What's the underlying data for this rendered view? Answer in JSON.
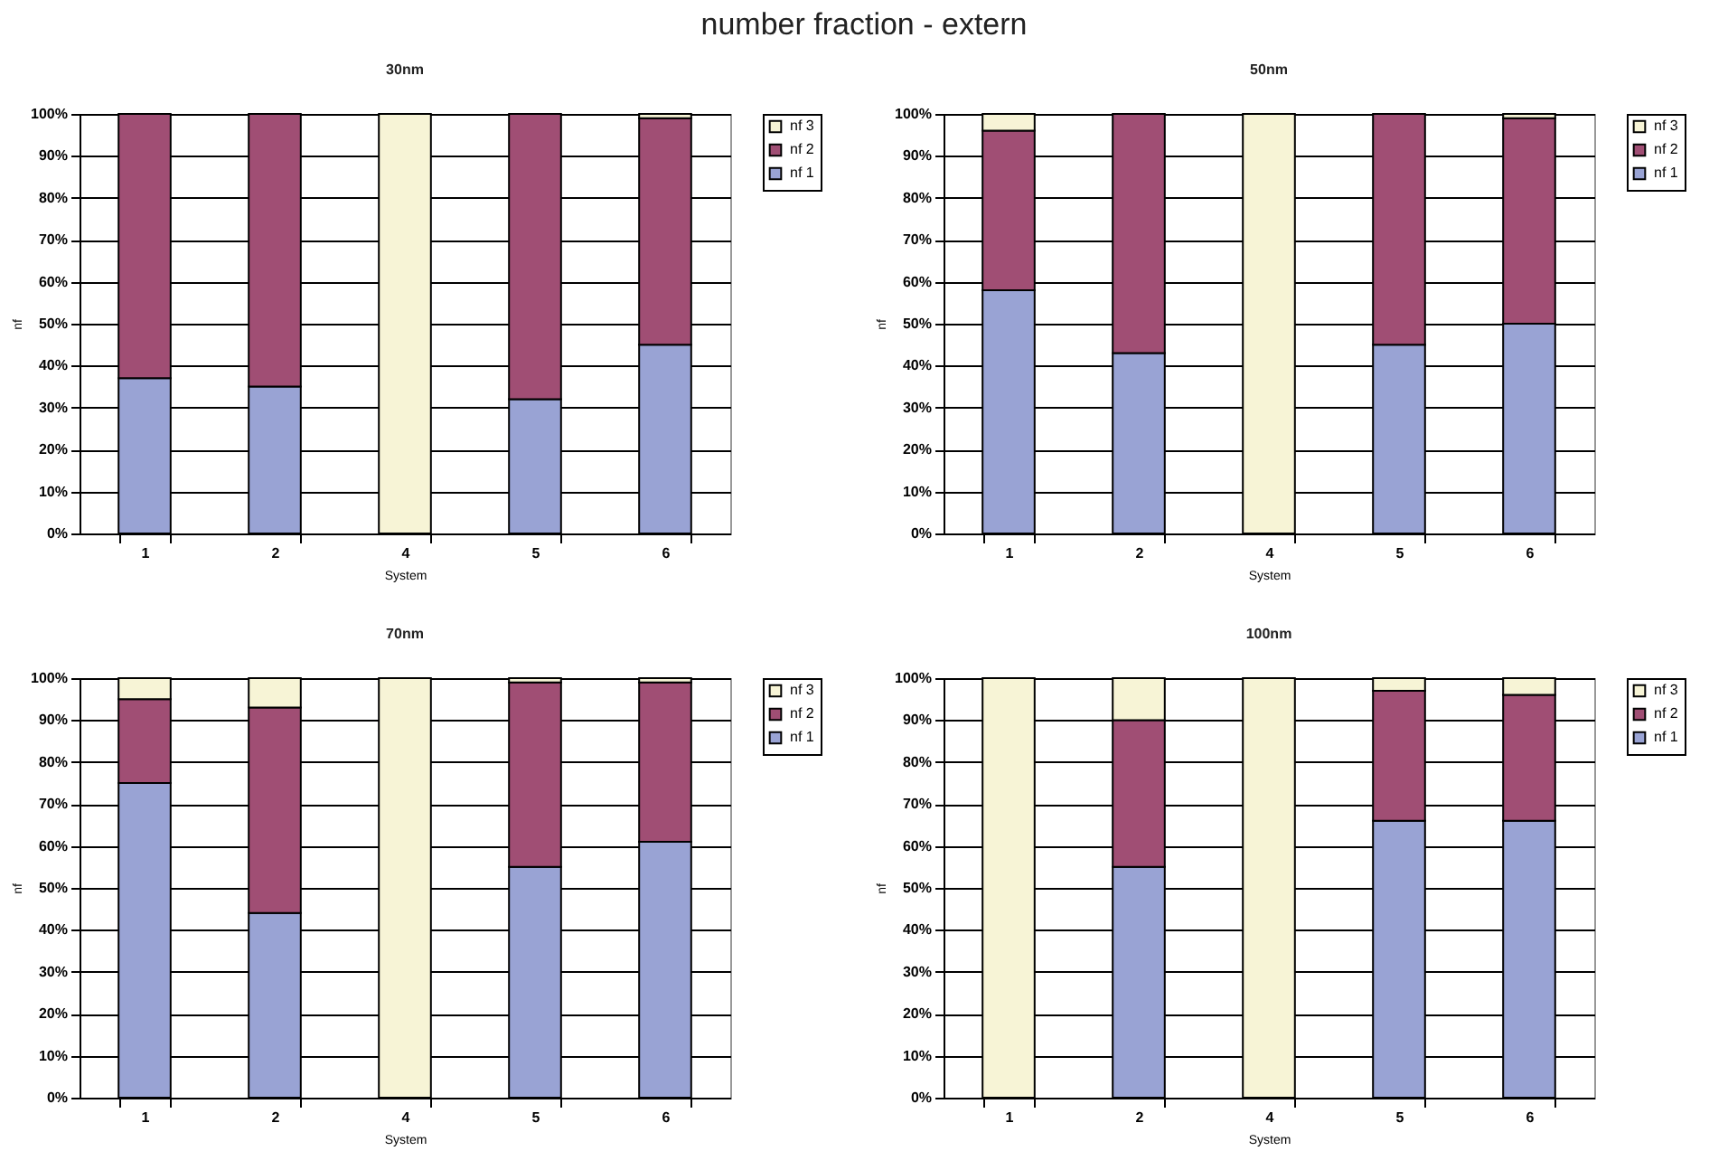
{
  "chart_data": [
    {
      "type": "bar",
      "title": "30nm",
      "annotations": [
        "number fraction - extern"
      ],
      "xlabel": "System",
      "ylabel": "nf",
      "categories": [
        "1",
        "2",
        "4",
        "5",
        "6"
      ],
      "stacked": true,
      "ylim": [
        0,
        100
      ],
      "yticks": [
        {
          "value": 0,
          "label": "0%"
        },
        {
          "value": 10,
          "label": "10%"
        },
        {
          "value": 20,
          "label": "20%"
        },
        {
          "value": 30,
          "label": "30%"
        },
        {
          "value": 40,
          "label": "40%"
        },
        {
          "value": 50,
          "label": "50%"
        },
        {
          "value": 60,
          "label": "60%"
        },
        {
          "value": 70,
          "label": "70%"
        },
        {
          "value": 80,
          "label": "80%"
        },
        {
          "value": 90,
          "label": "90%"
        },
        {
          "value": 100,
          "label": "100%"
        }
      ],
      "grid": "y",
      "legend": "right",
      "series": [
        {
          "name": "nf 1",
          "color": "#99a3d4",
          "values": [
            37,
            35,
            0,
            32,
            45
          ]
        },
        {
          "name": "nf 2",
          "color": "#a04e74",
          "values": [
            63,
            65,
            0,
            68,
            54
          ]
        },
        {
          "name": "nf 3",
          "color": "#f7f4d6",
          "values": [
            0,
            0,
            100,
            0,
            1
          ]
        }
      ]
    },
    {
      "type": "bar",
      "title": "50nm",
      "xlabel": "System",
      "ylabel": "nf",
      "categories": [
        "1",
        "2",
        "4",
        "5",
        "6"
      ],
      "stacked": true,
      "ylim": [
        0,
        100
      ],
      "yticks": [
        {
          "value": 0,
          "label": "0%"
        },
        {
          "value": 10,
          "label": "10%"
        },
        {
          "value": 20,
          "label": "20%"
        },
        {
          "value": 30,
          "label": "30%"
        },
        {
          "value": 40,
          "label": "40%"
        },
        {
          "value": 50,
          "label": "50%"
        },
        {
          "value": 60,
          "label": "60%"
        },
        {
          "value": 70,
          "label": "70%"
        },
        {
          "value": 80,
          "label": "80%"
        },
        {
          "value": 90,
          "label": "90%"
        },
        {
          "value": 100,
          "label": "100%"
        }
      ],
      "grid": "y",
      "legend": "right",
      "series": [
        {
          "name": "nf 1",
          "color": "#99a3d4",
          "values": [
            58,
            43,
            0,
            45,
            50
          ]
        },
        {
          "name": "nf 2",
          "color": "#a04e74",
          "values": [
            38,
            57,
            0,
            55,
            49
          ]
        },
        {
          "name": "nf 3",
          "color": "#f7f4d6",
          "values": [
            4,
            0,
            100,
            0,
            1
          ]
        }
      ]
    },
    {
      "type": "bar",
      "title": "70nm",
      "xlabel": "System",
      "ylabel": "nf",
      "categories": [
        "1",
        "2",
        "4",
        "5",
        "6"
      ],
      "stacked": true,
      "ylim": [
        0,
        100
      ],
      "yticks": [
        {
          "value": 0,
          "label": "0%"
        },
        {
          "value": 10,
          "label": "10%"
        },
        {
          "value": 20,
          "label": "20%"
        },
        {
          "value": 30,
          "label": "30%"
        },
        {
          "value": 40,
          "label": "40%"
        },
        {
          "value": 50,
          "label": "50%"
        },
        {
          "value": 60,
          "label": "60%"
        },
        {
          "value": 70,
          "label": "70%"
        },
        {
          "value": 80,
          "label": "80%"
        },
        {
          "value": 90,
          "label": "90%"
        },
        {
          "value": 100,
          "label": "100%"
        }
      ],
      "grid": "y",
      "legend": "right",
      "series": [
        {
          "name": "nf 1",
          "color": "#99a3d4",
          "values": [
            75,
            44,
            0,
            55,
            61
          ]
        },
        {
          "name": "nf 2",
          "color": "#a04e74",
          "values": [
            20,
            49,
            0,
            44,
            38
          ]
        },
        {
          "name": "nf 3",
          "color": "#f7f4d6",
          "values": [
            5,
            7,
            100,
            1,
            1
          ]
        }
      ]
    },
    {
      "type": "bar",
      "title": "100nm",
      "xlabel": "System",
      "ylabel": "nf",
      "categories": [
        "1",
        "2",
        "4",
        "5",
        "6"
      ],
      "stacked": true,
      "ylim": [
        0,
        100
      ],
      "yticks": [
        {
          "value": 0,
          "label": "0%"
        },
        {
          "value": 10,
          "label": "10%"
        },
        {
          "value": 20,
          "label": "20%"
        },
        {
          "value": 30,
          "label": "30%"
        },
        {
          "value": 40,
          "label": "40%"
        },
        {
          "value": 50,
          "label": "50%"
        },
        {
          "value": 60,
          "label": "60%"
        },
        {
          "value": 70,
          "label": "70%"
        },
        {
          "value": 80,
          "label": "80%"
        },
        {
          "value": 90,
          "label": "90%"
        },
        {
          "value": 100,
          "label": "100%"
        }
      ],
      "grid": "y",
      "legend": "right",
      "series": [
        {
          "name": "nf 1",
          "color": "#99a3d4",
          "values": [
            0,
            55,
            0,
            66,
            66
          ]
        },
        {
          "name": "nf 2",
          "color": "#a04e74",
          "values": [
            0,
            35,
            0,
            31,
            30
          ]
        },
        {
          "name": "nf 3",
          "color": "#f7f4d6",
          "values": [
            100,
            10,
            100,
            3,
            4
          ]
        }
      ]
    }
  ]
}
